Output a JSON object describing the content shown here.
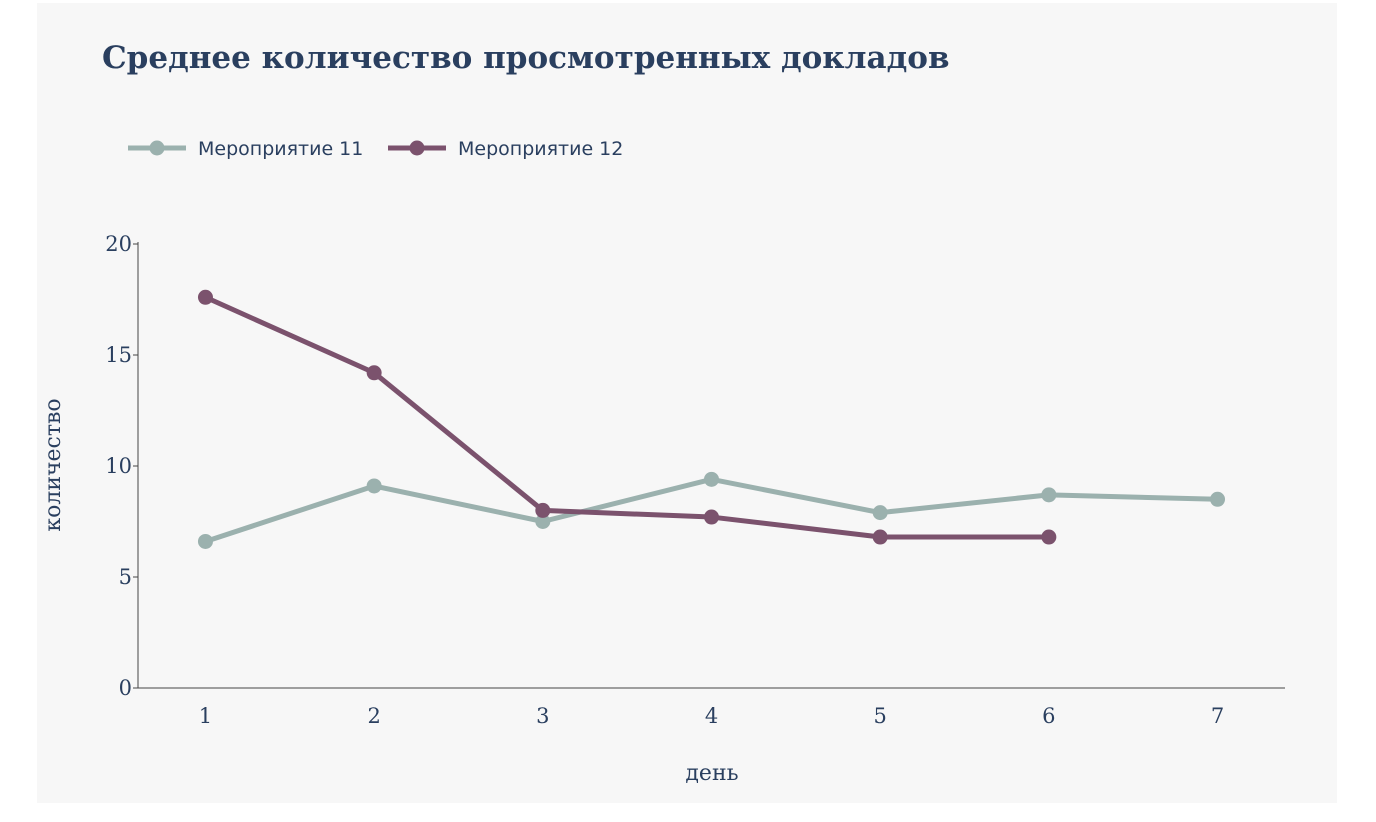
{
  "chart_data": {
    "type": "line",
    "title": "Среднее количество просмотренных докладов",
    "xlabel": "день",
    "ylabel": "количество",
    "x": [
      1,
      2,
      3,
      4,
      5,
      6,
      7
    ],
    "xlim": [
      0.6,
      7.4
    ],
    "ylim": [
      0,
      20
    ],
    "yticks": [
      0,
      5,
      10,
      15,
      20
    ],
    "grid": false,
    "legend_position": "top-left",
    "series": [
      {
        "name": "Мероприятие 11",
        "color": "#9bb1ae",
        "x": [
          1,
          2,
          3,
          4,
          5,
          6,
          7
        ],
        "values": [
          6.6,
          9.1,
          7.5,
          9.4,
          7.9,
          8.7,
          8.5
        ]
      },
      {
        "name": "Мероприятие 12",
        "color": "#7b526d",
        "x": [
          1,
          2,
          3,
          4,
          5,
          6
        ],
        "values": [
          17.6,
          14.2,
          8.0,
          7.7,
          6.8,
          6.8
        ]
      }
    ]
  }
}
